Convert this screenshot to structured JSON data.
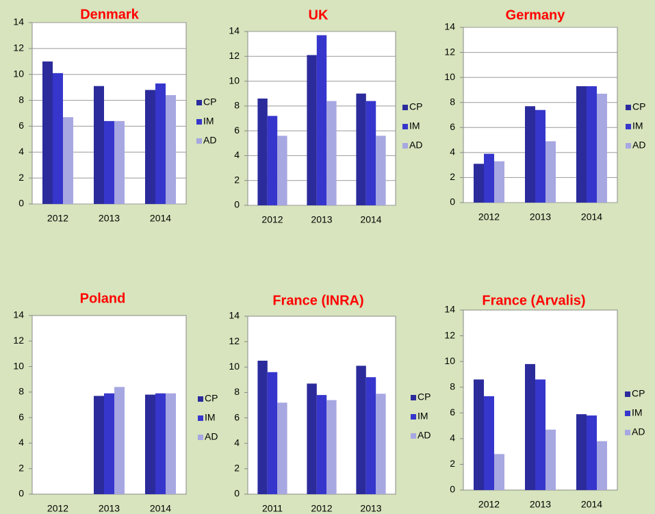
{
  "chart_data": [
    {
      "type": "bar",
      "title": "Denmark",
      "categories": [
        "2012",
        "2013",
        "2014"
      ],
      "ylim": [
        0,
        14
      ],
      "yticks": [
        0,
        2,
        4,
        6,
        8,
        10,
        12,
        14
      ],
      "grid": true,
      "series": [
        {
          "name": "CP",
          "color": "#2b2b9c",
          "values": [
            11,
            9.1,
            8.8
          ]
        },
        {
          "name": "IM",
          "color": "#3636cc",
          "values": [
            10.1,
            6.4,
            9.3
          ]
        },
        {
          "name": "AD",
          "color": "#a7a7e2",
          "values": [
            6.7,
            6.4,
            8.4
          ]
        }
      ]
    },
    {
      "type": "bar",
      "title": "UK",
      "categories": [
        "2012",
        "2013",
        "2014"
      ],
      "ylim": [
        0,
        14
      ],
      "yticks": [
        0,
        2,
        4,
        6,
        8,
        10,
        12,
        14
      ],
      "grid": true,
      "series": [
        {
          "name": "CP",
          "color": "#2b2b9c",
          "values": [
            8.6,
            12.1,
            9
          ]
        },
        {
          "name": "IM",
          "color": "#3636cc",
          "values": [
            7.2,
            13.7,
            8.4
          ]
        },
        {
          "name": "AD",
          "color": "#a7a7e2",
          "values": [
            5.6,
            8.4,
            5.6
          ]
        }
      ]
    },
    {
      "type": "bar",
      "title": "Germany",
      "categories": [
        "2012",
        "2013",
        "2014"
      ],
      "ylim": [
        0,
        14
      ],
      "yticks": [
        0,
        2,
        4,
        6,
        8,
        10,
        12,
        14
      ],
      "grid": true,
      "series": [
        {
          "name": "CP",
          "color": "#2b2b9c",
          "values": [
            3.1,
            7.7,
            9.3
          ]
        },
        {
          "name": "IM",
          "color": "#3636cc",
          "values": [
            3.9,
            7.4,
            9.3
          ]
        },
        {
          "name": "AD",
          "color": "#a7a7e2",
          "values": [
            3.3,
            4.9,
            8.7
          ]
        }
      ]
    },
    {
      "type": "bar",
      "title": "Poland",
      "categories": [
        "2012",
        "2013",
        "2014"
      ],
      "ylim": [
        0,
        14
      ],
      "yticks": [
        0,
        2,
        4,
        6,
        8,
        10,
        12,
        14
      ],
      "grid": false,
      "series": [
        {
          "name": "CP",
          "color": "#2b2b9c",
          "values": [
            null,
            7.7,
            7.8
          ]
        },
        {
          "name": "IM",
          "color": "#3636cc",
          "values": [
            null,
            7.9,
            7.9
          ]
        },
        {
          "name": "AD",
          "color": "#a7a7e2",
          "values": [
            null,
            8.4,
            7.9
          ]
        }
      ]
    },
    {
      "type": "bar",
      "title": "France (INRA)",
      "categories": [
        "2011",
        "2012",
        "2013"
      ],
      "ylim": [
        0,
        14
      ],
      "yticks": [
        0,
        2,
        4,
        6,
        8,
        10,
        12,
        14
      ],
      "grid": false,
      "series": [
        {
          "name": "CP",
          "color": "#2b2b9c",
          "values": [
            10.5,
            8.7,
            10.1
          ]
        },
        {
          "name": "IM",
          "color": "#3636cc",
          "values": [
            9.6,
            7.8,
            9.2
          ]
        },
        {
          "name": "AD",
          "color": "#a7a7e2",
          "values": [
            7.2,
            7.4,
            7.9
          ]
        }
      ]
    },
    {
      "type": "bar",
      "title": "France (Arvalis)",
      "categories": [
        "2012",
        "2013",
        "2014"
      ],
      "ylim": [
        0,
        14
      ],
      "yticks": [
        0,
        2,
        4,
        6,
        8,
        10,
        12,
        14
      ],
      "grid": false,
      "series": [
        {
          "name": "CP",
          "color": "#2b2b9c",
          "values": [
            8.6,
            9.8,
            5.9
          ]
        },
        {
          "name": "IM",
          "color": "#3636cc",
          "values": [
            7.3,
            8.6,
            5.8
          ]
        },
        {
          "name": "AD",
          "color": "#a7a7e2",
          "values": [
            2.8,
            4.7,
            3.8
          ]
        }
      ]
    }
  ]
}
